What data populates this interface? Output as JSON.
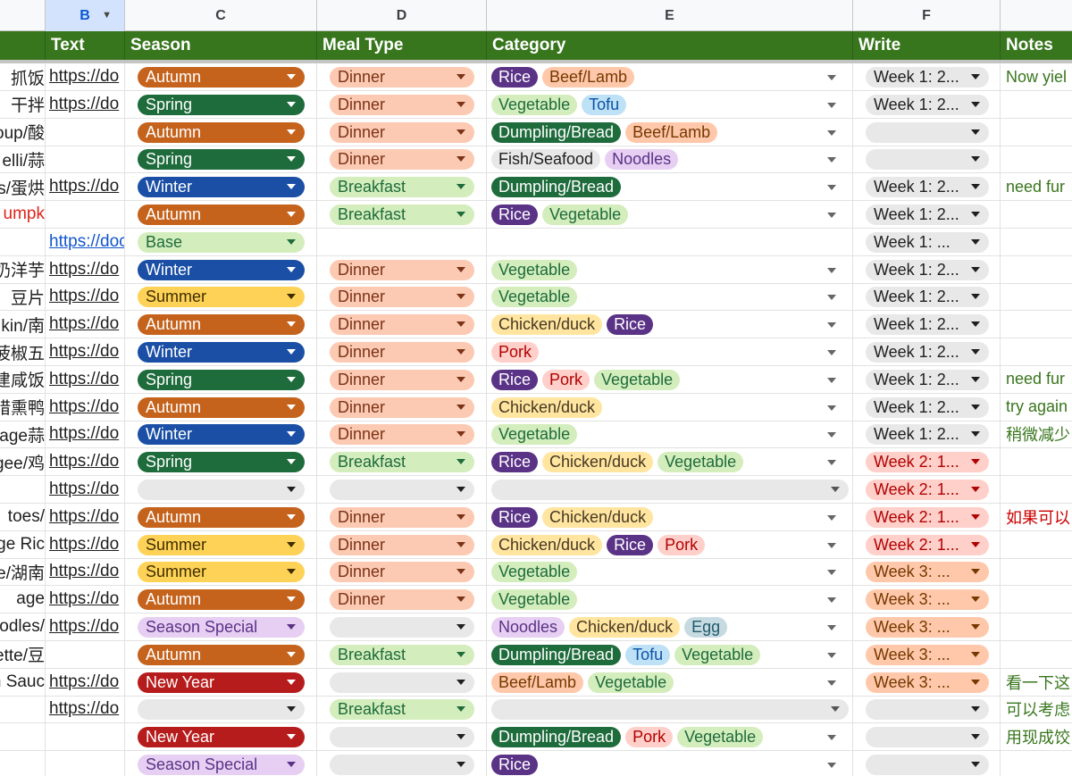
{
  "column_letters": [
    "B",
    "C",
    "D",
    "E",
    "F"
  ],
  "headers": {
    "text": "Text",
    "season": "Season",
    "meal_type": "Meal Type",
    "category": "Category",
    "write": "Write",
    "notes": "Notes"
  },
  "colors": {
    "header_bar": "#38761d",
    "season": {
      "Autumn": {
        "bg": "#c5631d",
        "fg": "#ffffff"
      },
      "Spring": {
        "bg": "#1e6b3c",
        "fg": "#ffffff"
      },
      "Winter": {
        "bg": "#1a4fa5",
        "fg": "#ffffff"
      },
      "Summer": {
        "bg": "#fdd257",
        "fg": "#3f2d00"
      },
      "Base": {
        "bg": "#d4edbc",
        "fg": "#1e6b3c"
      },
      "New Year": {
        "bg": "#b71c1c",
        "fg": "#ffffff"
      },
      "Season Special": {
        "bg": "#e6cff2",
        "fg": "#5a3286"
      },
      "": {
        "bg": "#e8e8e8",
        "fg": "#1f1f1f"
      }
    },
    "meal": {
      "Dinner": {
        "bg": "#fcc9b2",
        "fg": "#7a3317"
      },
      "Breakfast": {
        "bg": "#d4edbc",
        "fg": "#1e6b3c"
      },
      "": {
        "bg": "#e8e8e8",
        "fg": "#1f1f1f"
      }
    },
    "category": {
      "Rice": {
        "bg": "#5a3286",
        "fg": "#ffffff"
      },
      "Beef/Lamb": {
        "bg": "#ffc8aa",
        "fg": "#753800"
      },
      "Vegetable": {
        "bg": "#d4edbc",
        "fg": "#1e6b3c"
      },
      "Tofu": {
        "bg": "#bfe1f6",
        "fg": "#0a53a8"
      },
      "Dumpling/Bread": {
        "bg": "#1e6b3c",
        "fg": "#ffffff"
      },
      "Fish/Seafood": {
        "bg": "#e8e8e8",
        "fg": "#1f1f1f"
      },
      "Noodles": {
        "bg": "#e6cff2",
        "fg": "#5a3286"
      },
      "Chicken/duck": {
        "bg": "#ffe5a0",
        "fg": "#473821"
      },
      "Pork": {
        "bg": "#ffcfc9",
        "fg": "#b10202"
      },
      "Egg": {
        "bg": "#c6dbe1",
        "fg": "#215a6c"
      }
    },
    "write": {
      "Week 1": {
        "bg": "#e8e8e8",
        "fg": "#1f1f1f"
      },
      "Week 2": {
        "bg": "#ffcfc9",
        "fg": "#b10202"
      },
      "Week 3": {
        "bg": "#ffc8aa",
        "fg": "#753800"
      },
      "": {
        "bg": "#e8e8e8",
        "fg": "#1f1f1f"
      }
    },
    "notes": {
      "green": "#38761d",
      "red": "#cc0000"
    }
  },
  "rows": [
    {
      "title": "抓饭",
      "link": "https://do",
      "season": "Autumn",
      "meal": "Dinner",
      "category": [
        "Rice",
        "Beef/Lamb"
      ],
      "write": "Week 1: 2...",
      "write_group": "Week 1",
      "note": "Now yiel",
      "note_color": "green"
    },
    {
      "title": "干拌",
      "link": "https://do",
      "season": "Spring",
      "meal": "Dinner",
      "category": [
        "Vegetable",
        "Tofu"
      ],
      "write": "Week 1: 2...",
      "write_group": "Week 1",
      "note": "",
      "note_color": ""
    },
    {
      "title": "oup/酸",
      "link": "",
      "season": "Autumn",
      "meal": "Dinner",
      "category": [
        "Dumpling/Bread",
        "Beef/Lamb"
      ],
      "write": "",
      "write_group": "",
      "note": "",
      "note_color": ""
    },
    {
      "title": "elli/蒜",
      "link": "",
      "season": "Spring",
      "meal": "Dinner",
      "category": [
        "Fish/Seafood",
        "Noodles"
      ],
      "write": "",
      "write_group": "",
      "note": "",
      "note_color": ""
    },
    {
      "title": "s/蛋烘",
      "link": "https://do",
      "season": "Winter",
      "meal": "Breakfast",
      "category": [
        "Dumpling/Bread"
      ],
      "write": "Week 1: 2...",
      "write_group": "Week 1",
      "note": "need fur",
      "note_color": "green"
    },
    {
      "title": "umpk",
      "title_red": true,
      "link": "",
      "season": "Autumn",
      "meal": "Breakfast",
      "category": [
        "Rice",
        "Vegetable"
      ],
      "write": "Week 1: 2...",
      "write_group": "Week 1",
      "note": "",
      "note_color": ""
    },
    {
      "title": "",
      "link": "https://doc",
      "link_blue": true,
      "season": "Base",
      "meal": null,
      "category": null,
      "write": "Week 1: ...",
      "write_group": "Week 1",
      "note": "",
      "note_color": ""
    },
    {
      "title": "奶洋芋",
      "link": "https://do",
      "season": "Winter",
      "meal": "Dinner",
      "category": [
        "Vegetable"
      ],
      "write": "Week 1: 2...",
      "write_group": "Week 1",
      "note": "",
      "note_color": ""
    },
    {
      "title": "豆片",
      "link": "https://do",
      "season": "Summer",
      "meal": "Dinner",
      "category": [
        "Vegetable"
      ],
      "write": "Week 1: 2...",
      "write_group": "Week 1",
      "note": "",
      "note_color": ""
    },
    {
      "title": "kin/南",
      "link": "https://do",
      "season": "Autumn",
      "meal": "Dinner",
      "category": [
        "Chicken/duck",
        "Rice"
      ],
      "write": "Week 1: 2...",
      "write_group": "Week 1",
      "note": "",
      "note_color": ""
    },
    {
      "title": "菠椒五",
      "link": "https://do",
      "season": "Winter",
      "meal": "Dinner",
      "category": [
        "Pork"
      ],
      "write": "Week 1: 2...",
      "write_group": "Week 1",
      "note": "",
      "note_color": ""
    },
    {
      "title": "建咸饭",
      "link": "https://do",
      "season": "Spring",
      "meal": "Dinner",
      "category": [
        "Rice",
        "Pork",
        "Vegetable"
      ],
      "write": "Week 1: 2...",
      "write_group": "Week 1",
      "note": "need fur",
      "note_color": "green"
    },
    {
      "title": "腊熏鸭",
      "link": "https://do",
      "season": "Autumn",
      "meal": "Dinner",
      "category": [
        "Chicken/duck"
      ],
      "write": "Week 1: 2...",
      "write_group": "Week 1",
      "note": "try again",
      "note_color": "green"
    },
    {
      "title": "page蒜",
      "link": "https://do",
      "season": "Winter",
      "meal": "Dinner",
      "category": [
        "Vegetable"
      ],
      "write": "Week 1: 2...",
      "write_group": "Week 1",
      "note": "稍微减少",
      "note_color": "green"
    },
    {
      "title": "gee/鸡",
      "link": "https://do",
      "season": "Spring",
      "meal": "Breakfast",
      "category": [
        "Rice",
        "Chicken/duck",
        "Vegetable"
      ],
      "write": "Week 2: 1...",
      "write_group": "Week 2",
      "note": "",
      "note_color": ""
    },
    {
      "title": "",
      "link": "https://do",
      "season": "",
      "meal": "",
      "category": [],
      "write": "Week 2: 1...",
      "write_group": "Week 2",
      "note": "",
      "note_color": ""
    },
    {
      "title": "toes/",
      "link": "https://do",
      "season": "Autumn",
      "meal": "Dinner",
      "category": [
        "Rice",
        "Chicken/duck"
      ],
      "write": "Week 2: 1...",
      "write_group": "Week 2",
      "note": "如果可以",
      "note_color": "red"
    },
    {
      "title": "ge Ric",
      "link": "https://do",
      "season": "Summer",
      "meal": "Dinner",
      "category": [
        "Chicken/duck",
        "Rice",
        "Pork"
      ],
      "write": "Week 2: 1...",
      "write_group": "Week 2",
      "note": "",
      "note_color": ""
    },
    {
      "title": "e/湖南",
      "link": "https://do",
      "season": "Summer",
      "meal": "Dinner",
      "category": [
        "Vegetable"
      ],
      "write": "Week 3: ...",
      "write_group": "Week 3",
      "note": "",
      "note_color": ""
    },
    {
      "title": "age",
      "link": "https://do",
      "season": "Autumn",
      "meal": "Dinner",
      "category": [
        "Vegetable"
      ],
      "write": "Week 3: ...",
      "write_group": "Week 3",
      "note": "",
      "note_color": ""
    },
    {
      "title": "odles/",
      "link": "https://do",
      "season": "Season Special",
      "meal": "",
      "category": [
        "Noodles",
        "Chicken/duck",
        "Egg"
      ],
      "write": "Week 3: ...",
      "write_group": "Week 3",
      "note": "",
      "note_color": ""
    },
    {
      "title": "ette/豆",
      "link": "",
      "season": "Autumn",
      "meal": "Breakfast",
      "category": [
        "Dumpling/Bread",
        "Tofu",
        "Vegetable"
      ],
      "write": "Week 3: ...",
      "write_group": "Week 3",
      "note": "",
      "note_color": ""
    },
    {
      "title": "n Sauc",
      "link": "https://do",
      "season": "New Year",
      "meal": "",
      "category": [
        "Beef/Lamb",
        "Vegetable"
      ],
      "write": "Week 3: ...",
      "write_group": "Week 3",
      "note": "看一下这",
      "note_color": "green"
    },
    {
      "title": "",
      "link": "https://do",
      "season": "",
      "meal": "Breakfast",
      "category": [],
      "write": "",
      "write_group": "",
      "note": "可以考虑",
      "note_color": "green"
    },
    {
      "title": "",
      "link": "",
      "season": "New Year",
      "meal": "",
      "category": [
        "Dumpling/Bread",
        "Pork",
        "Vegetable"
      ],
      "write": "",
      "write_group": "",
      "note": "用现成饺",
      "note_color": "green"
    },
    {
      "title": "",
      "link": "",
      "season": "Season Special",
      "meal": "",
      "category": [
        "Rice"
      ],
      "write": "",
      "write_group": "",
      "note": "",
      "note_color": ""
    }
  ]
}
